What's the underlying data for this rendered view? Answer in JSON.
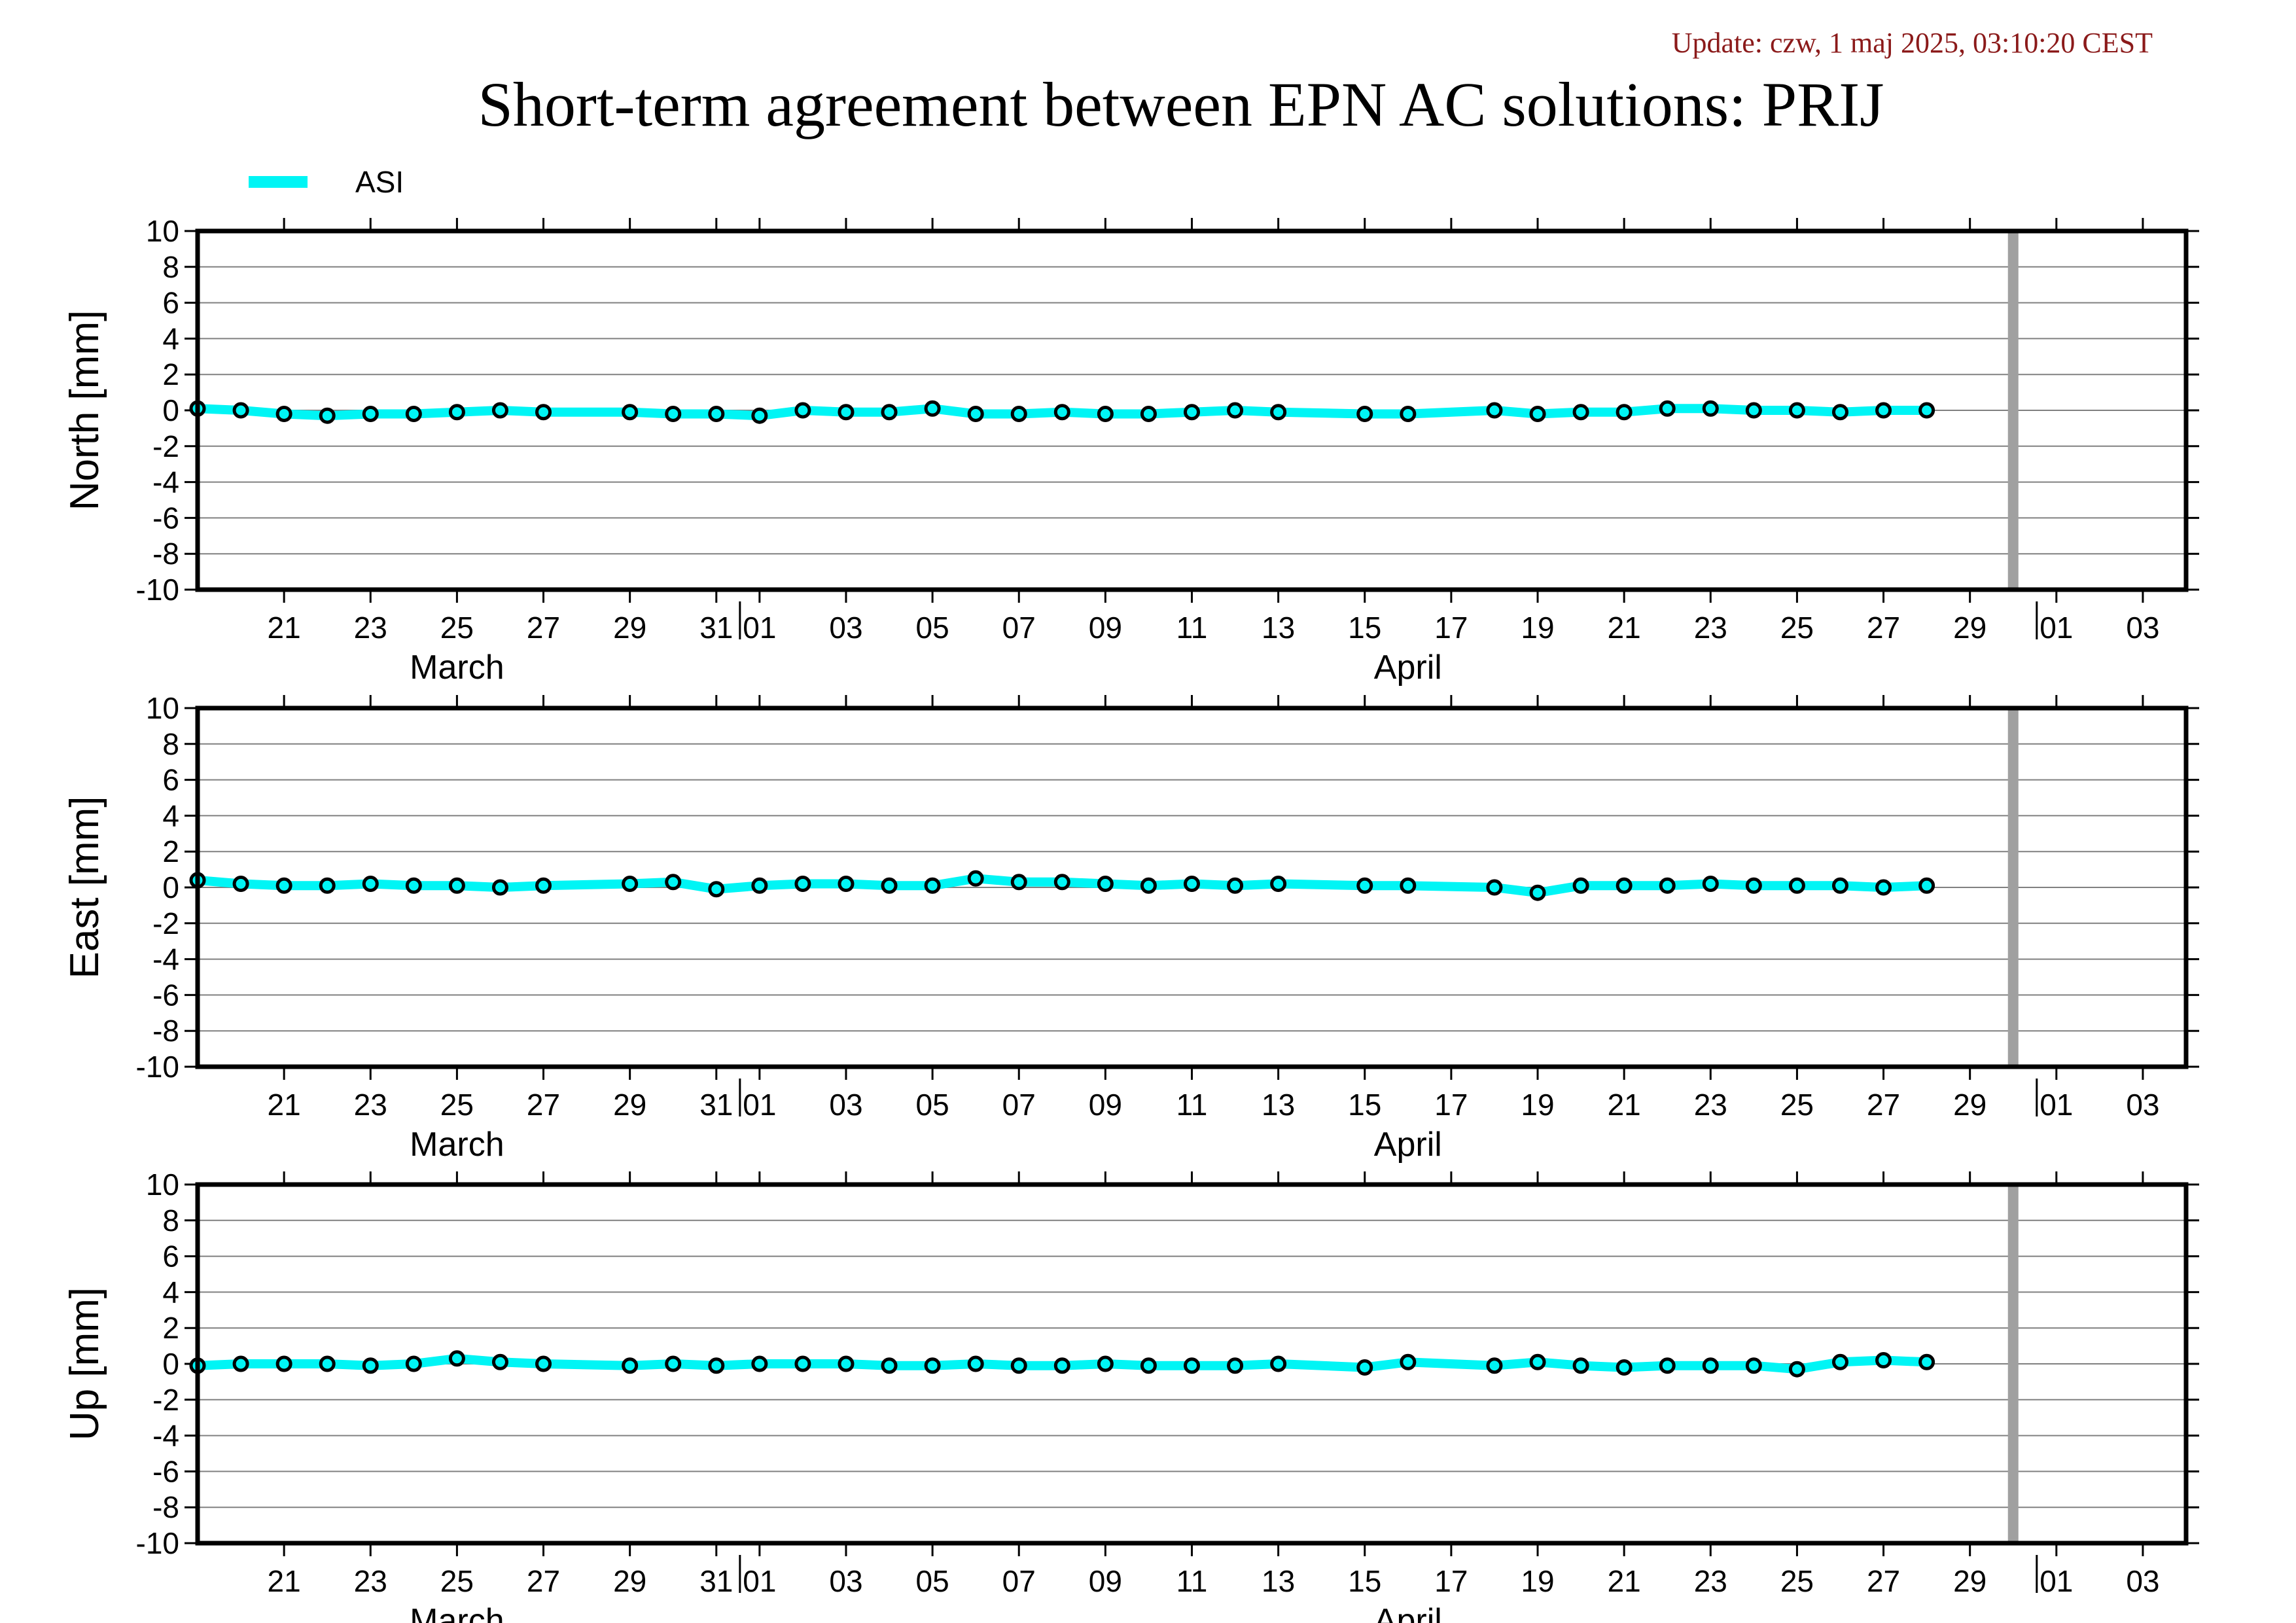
{
  "update_text": "Update: czw, 1 maj 2025, 03:10:20 CEST",
  "title": "Short-term agreement between EPN AC solutions: PRIJ",
  "colors": {
    "series": "#00f5f5",
    "marker_stroke": "#000000",
    "grid": "#808080",
    "now_line": "#a0a0a0"
  },
  "chart_data": {
    "type": "line",
    "legend": {
      "position": "top-left",
      "entries": [
        "ASI"
      ]
    },
    "xlim": [
      "2025-03-19",
      "2025-05-04"
    ],
    "now_marker": "2025-04-30",
    "x_ticks": [
      {
        "date": "2025-03-21",
        "label": "21"
      },
      {
        "date": "2025-03-23",
        "label": "23"
      },
      {
        "date": "2025-03-25",
        "label": "25"
      },
      {
        "date": "2025-03-27",
        "label": "27"
      },
      {
        "date": "2025-03-29",
        "label": "29"
      },
      {
        "date": "2025-03-31",
        "label": "31"
      },
      {
        "date": "2025-04-01",
        "label": "01"
      },
      {
        "date": "2025-04-03",
        "label": "03"
      },
      {
        "date": "2025-04-05",
        "label": "05"
      },
      {
        "date": "2025-04-07",
        "label": "07"
      },
      {
        "date": "2025-04-09",
        "label": "09"
      },
      {
        "date": "2025-04-11",
        "label": "11"
      },
      {
        "date": "2025-04-13",
        "label": "13"
      },
      {
        "date": "2025-04-15",
        "label": "15"
      },
      {
        "date": "2025-04-17",
        "label": "17"
      },
      {
        "date": "2025-04-19",
        "label": "19"
      },
      {
        "date": "2025-04-21",
        "label": "21"
      },
      {
        "date": "2025-04-23",
        "label": "23"
      },
      {
        "date": "2025-04-25",
        "label": "25"
      },
      {
        "date": "2025-04-27",
        "label": "27"
      },
      {
        "date": "2025-04-29",
        "label": "29"
      },
      {
        "date": "2025-05-01",
        "label": "01"
      },
      {
        "date": "2025-05-03",
        "label": "03"
      }
    ],
    "month_labels": [
      {
        "date": "2025-03-25",
        "label": "March"
      },
      {
        "date": "2025-04-16",
        "label": "April"
      }
    ],
    "month_boundaries": [
      "2025-04-01",
      "2025-05-01"
    ],
    "dates": [
      "2025-03-19",
      "2025-03-20",
      "2025-03-21",
      "2025-03-22",
      "2025-03-23",
      "2025-03-24",
      "2025-03-25",
      "2025-03-26",
      "2025-03-27",
      "2025-03-29",
      "2025-03-30",
      "2025-03-31",
      "2025-04-01",
      "2025-04-02",
      "2025-04-03",
      "2025-04-04",
      "2025-04-05",
      "2025-04-06",
      "2025-04-07",
      "2025-04-08",
      "2025-04-09",
      "2025-04-10",
      "2025-04-11",
      "2025-04-12",
      "2025-04-13",
      "2025-04-15",
      "2025-04-16",
      "2025-04-18",
      "2025-04-19",
      "2025-04-20",
      "2025-04-21",
      "2025-04-22",
      "2025-04-23",
      "2025-04-24",
      "2025-04-25",
      "2025-04-26",
      "2025-04-27",
      "2025-04-28"
    ],
    "panels": [
      {
        "ylabel": "North [mm]",
        "ylim": [
          -10,
          10
        ],
        "yticks": [
          10,
          8,
          6,
          4,
          2,
          0,
          -2,
          -4,
          -6,
          -8,
          -10
        ],
        "series": [
          {
            "name": "ASI",
            "values": [
              0.1,
              0.0,
              -0.2,
              -0.3,
              -0.2,
              -0.2,
              -0.1,
              0.0,
              -0.1,
              -0.1,
              -0.2,
              -0.2,
              -0.3,
              0.0,
              -0.1,
              -0.1,
              0.1,
              -0.2,
              -0.2,
              -0.1,
              -0.2,
              -0.2,
              -0.1,
              0.0,
              -0.1,
              -0.2,
              -0.2,
              0.0,
              -0.2,
              -0.1,
              -0.1,
              0.1,
              0.1,
              0.0,
              0.0,
              -0.1,
              0.0,
              0.0
            ]
          }
        ]
      },
      {
        "ylabel": "East [mm]",
        "ylim": [
          -10,
          10
        ],
        "yticks": [
          10,
          8,
          6,
          4,
          2,
          0,
          -2,
          -4,
          -6,
          -8,
          -10
        ],
        "series": [
          {
            "name": "ASI",
            "values": [
              0.4,
              0.2,
              0.1,
              0.1,
              0.2,
              0.1,
              0.1,
              0.0,
              0.1,
              0.2,
              0.3,
              -0.1,
              0.1,
              0.2,
              0.2,
              0.1,
              0.1,
              0.5,
              0.3,
              0.3,
              0.2,
              0.1,
              0.2,
              0.1,
              0.2,
              0.1,
              0.1,
              0.0,
              -0.3,
              0.1,
              0.1,
              0.1,
              0.2,
              0.1,
              0.1,
              0.1,
              0.0,
              0.1
            ]
          }
        ]
      },
      {
        "ylabel": "Up [mm]",
        "ylim": [
          -10,
          10
        ],
        "yticks": [
          10,
          8,
          6,
          4,
          2,
          0,
          -2,
          -4,
          -6,
          -8,
          -10
        ],
        "series": [
          {
            "name": "ASI",
            "values": [
              -0.1,
              0.0,
              0.0,
              0.0,
              -0.1,
              0.0,
              0.3,
              0.1,
              0.0,
              -0.1,
              0.0,
              -0.1,
              0.0,
              0.0,
              0.0,
              -0.1,
              -0.1,
              0.0,
              -0.1,
              -0.1,
              0.0,
              -0.1,
              -0.1,
              -0.1,
              0.0,
              -0.2,
              0.1,
              -0.1,
              0.1,
              -0.1,
              -0.2,
              -0.1,
              -0.1,
              -0.1,
              -0.3,
              0.1,
              0.2,
              0.1
            ]
          }
        ]
      }
    ]
  }
}
